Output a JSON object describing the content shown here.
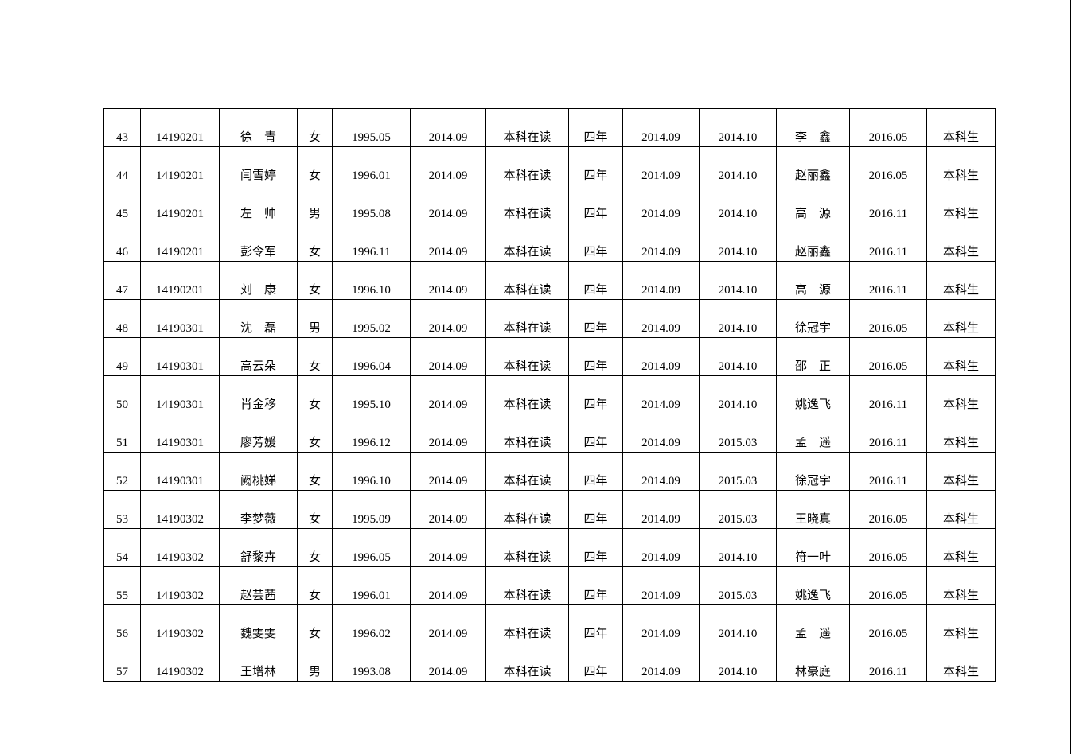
{
  "rows": [
    [
      "43",
      "14190201",
      "徐　青",
      "女",
      "1995.05",
      "2014.09",
      "本科在读",
      "四年",
      "2014.09",
      "2014.10",
      "李　鑫",
      "2016.05",
      "本科生"
    ],
    [
      "44",
      "14190201",
      "闫雪婷",
      "女",
      "1996.01",
      "2014.09",
      "本科在读",
      "四年",
      "2014.09",
      "2014.10",
      "赵丽鑫",
      "2016.05",
      "本科生"
    ],
    [
      "45",
      "14190201",
      "左　帅",
      "男",
      "1995.08",
      "2014.09",
      "本科在读",
      "四年",
      "2014.09",
      "2014.10",
      "高　源",
      "2016.11",
      "本科生"
    ],
    [
      "46",
      "14190201",
      "彭令军",
      "女",
      "1996.11",
      "2014.09",
      "本科在读",
      "四年",
      "2014.09",
      "2014.10",
      "赵丽鑫",
      "2016.11",
      "本科生"
    ],
    [
      "47",
      "14190201",
      "刘　康",
      "女",
      "1996.10",
      "2014.09",
      "本科在读",
      "四年",
      "2014.09",
      "2014.10",
      "高　源",
      "2016.11",
      "本科生"
    ],
    [
      "48",
      "14190301",
      "沈　磊",
      "男",
      "1995.02",
      "2014.09",
      "本科在读",
      "四年",
      "2014.09",
      "2014.10",
      "徐冠宇",
      "2016.05",
      "本科生"
    ],
    [
      "49",
      "14190301",
      "高云朵",
      "女",
      "1996.04",
      "2014.09",
      "本科在读",
      "四年",
      "2014.09",
      "2014.10",
      "邵　正",
      "2016.05",
      "本科生"
    ],
    [
      "50",
      "14190301",
      "肖金移",
      "女",
      "1995.10",
      "2014.09",
      "本科在读",
      "四年",
      "2014.09",
      "2014.10",
      "姚逸飞",
      "2016.11",
      "本科生"
    ],
    [
      "51",
      "14190301",
      "廖芳媛",
      "女",
      "1996.12",
      "2014.09",
      "本科在读",
      "四年",
      "2014.09",
      "2015.03",
      "孟　遥",
      "2016.11",
      "本科生"
    ],
    [
      "52",
      "14190301",
      "阙桃娣",
      "女",
      "1996.10",
      "2014.09",
      "本科在读",
      "四年",
      "2014.09",
      "2015.03",
      "徐冠宇",
      "2016.11",
      "本科生"
    ],
    [
      "53",
      "14190302",
      "李梦薇",
      "女",
      "1995.09",
      "2014.09",
      "本科在读",
      "四年",
      "2014.09",
      "2015.03",
      "王晓真",
      "2016.05",
      "本科生"
    ],
    [
      "54",
      "14190302",
      "舒黎卉",
      "女",
      "1996.05",
      "2014.09",
      "本科在读",
      "四年",
      "2014.09",
      "2014.10",
      "符一叶",
      "2016.05",
      "本科生"
    ],
    [
      "55",
      "14190302",
      "赵芸茜",
      "女",
      "1996.01",
      "2014.09",
      "本科在读",
      "四年",
      "2014.09",
      "2015.03",
      "姚逸飞",
      "2016.05",
      "本科生"
    ],
    [
      "56",
      "14190302",
      "魏雯雯",
      "女",
      "1996.02",
      "2014.09",
      "本科在读",
      "四年",
      "2014.09",
      "2014.10",
      "孟　遥",
      "2016.05",
      "本科生"
    ],
    [
      "57",
      "14190302",
      "王增林",
      "男",
      "1993.08",
      "2014.09",
      "本科在读",
      "四年",
      "2014.09",
      "2014.10",
      "林豪庭",
      "2016.11",
      "本科生"
    ]
  ]
}
